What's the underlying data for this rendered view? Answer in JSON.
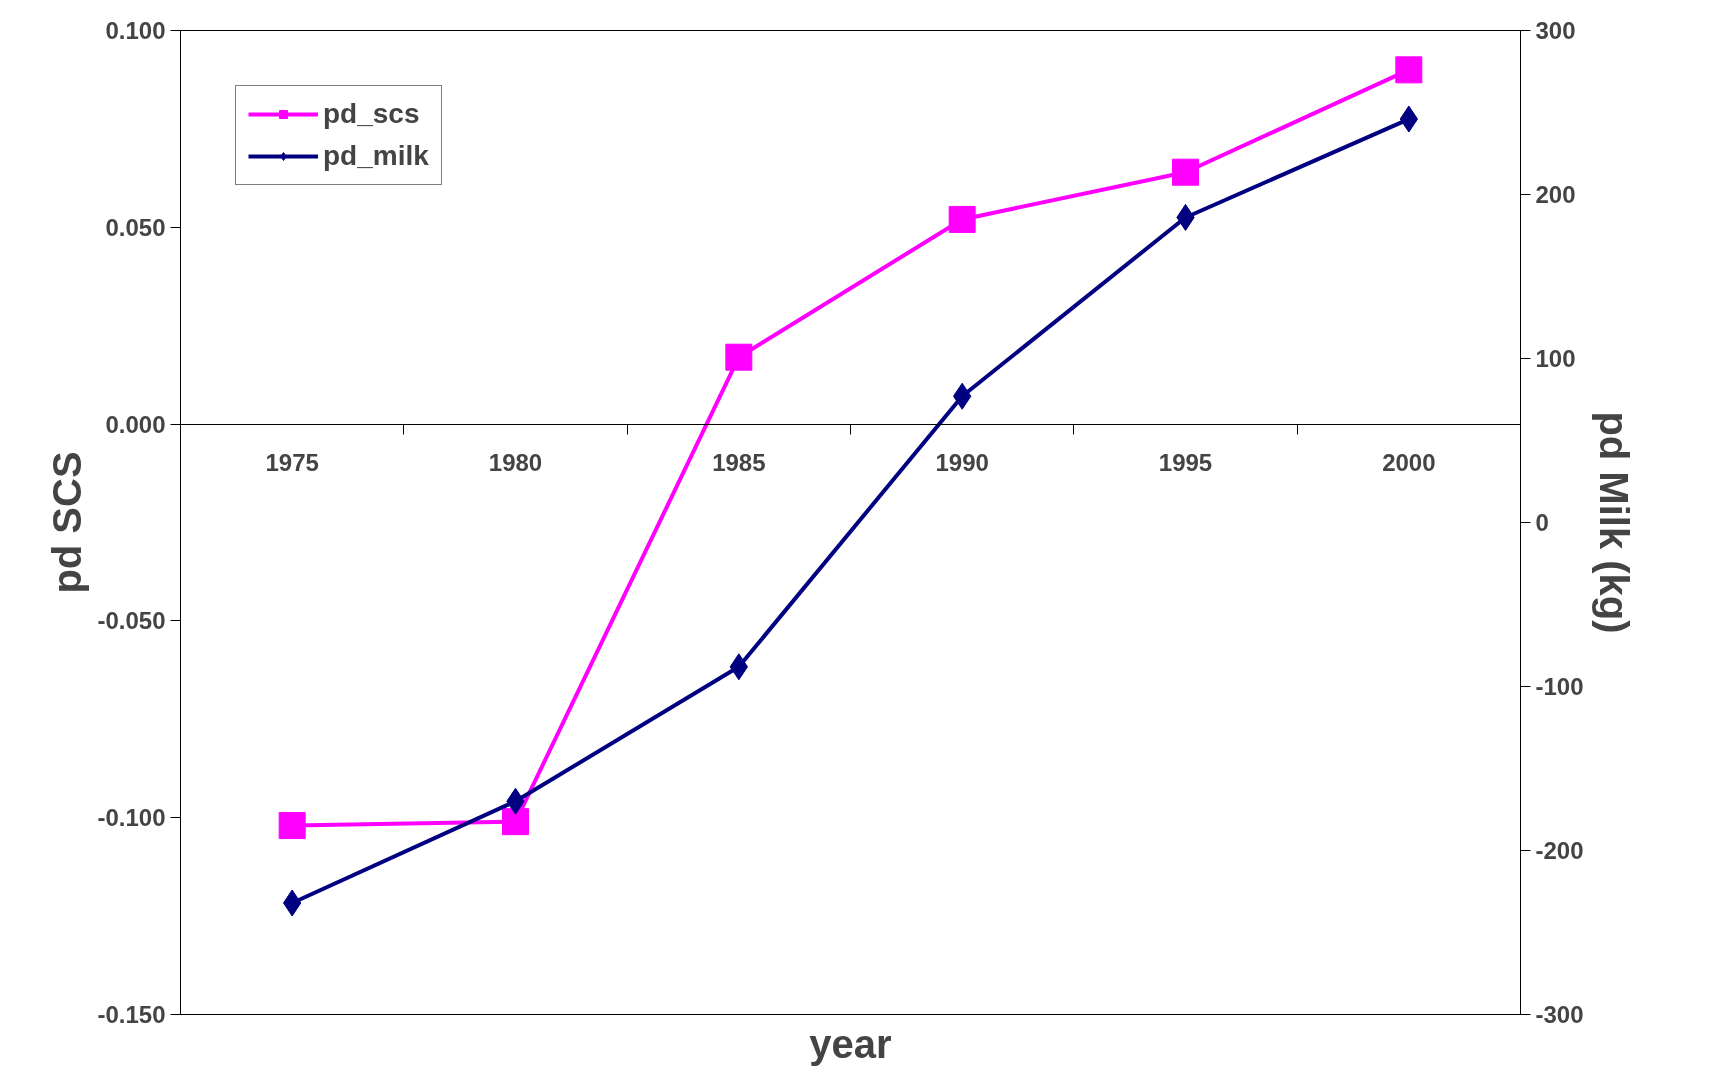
{
  "chart_data": {
    "type": "line",
    "categories": [
      "1975",
      "1980",
      "1985",
      "1990",
      "1995",
      "2000"
    ],
    "xlabel": "year",
    "ylabel": "pd SCS",
    "y2label": "pd Milk (kg)",
    "ylim": [
      -0.15,
      0.1
    ],
    "yticks": [
      {
        "value": -0.15,
        "label": "-0.150"
      },
      {
        "value": -0.1,
        "label": "-0.100"
      },
      {
        "value": -0.05,
        "label": "-0.050"
      },
      {
        "value": 0,
        "label": "0.000"
      },
      {
        "value": 0.05,
        "label": "0.050"
      },
      {
        "value": 0.1,
        "label": "0.100"
      }
    ],
    "y2lim": [
      -300,
      300
    ],
    "y2ticks": [
      -300,
      -200,
      -100,
      0,
      100,
      200,
      300
    ],
    "legend": "top left",
    "grid": false,
    "series": [
      {
        "name": "pd_scs",
        "color": "#ff00ff",
        "marker": "square",
        "values": [
          -0.102,
          -0.101,
          0.017,
          0.052,
          0.064,
          0.09
        ]
      },
      {
        "name": "pd_milk",
        "color": "#000080",
        "marker": "diamond",
        "axis": "y2",
        "values": [
          -232,
          -170,
          -88,
          77,
          186,
          246
        ]
      }
    ]
  }
}
